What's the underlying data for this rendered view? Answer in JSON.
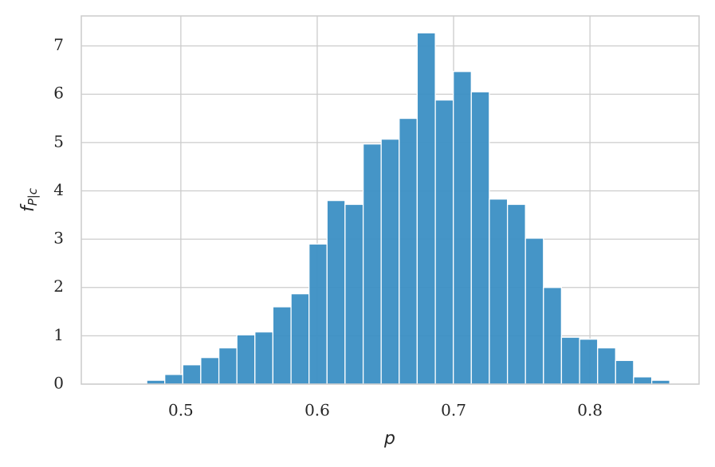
{
  "chart_data": {
    "type": "histogram",
    "xlabel": "p",
    "ylabel": "f",
    "ylabel_subscript": "P|c",
    "bins": [
      0.4485,
      0.4617,
      0.475,
      0.4882,
      0.5014,
      0.5146,
      0.5279,
      0.5411,
      0.5543,
      0.5675,
      0.5808,
      0.594,
      0.6072,
      0.6204,
      0.6337,
      0.6469,
      0.6601,
      0.6733,
      0.6866,
      0.6998,
      0.713,
      0.7262,
      0.7395,
      0.7527,
      0.7659,
      0.7791,
      0.7924,
      0.8056,
      0.8188,
      0.832,
      0.8453,
      0.8585
    ],
    "values": [
      0.01,
      0.01,
      0.08,
      0.2,
      0.4,
      0.55,
      0.75,
      1.02,
      1.08,
      1.6,
      1.87,
      2.9,
      3.8,
      3.72,
      4.97,
      5.07,
      5.5,
      7.27,
      5.88,
      6.47,
      6.05,
      3.83,
      3.72,
      3.02,
      2.0,
      0.97,
      0.93,
      0.75,
      0.49,
      0.15,
      0.08
    ],
    "color": "#3b8fc4",
    "xlim": [
      0.427,
      0.88
    ],
    "xticks": [
      0.5,
      0.6,
      0.7,
      0.8
    ],
    "ylim": [
      0,
      7.62
    ],
    "yticks": [
      0,
      1,
      2,
      3,
      4,
      5,
      6,
      7
    ],
    "grid": true
  }
}
